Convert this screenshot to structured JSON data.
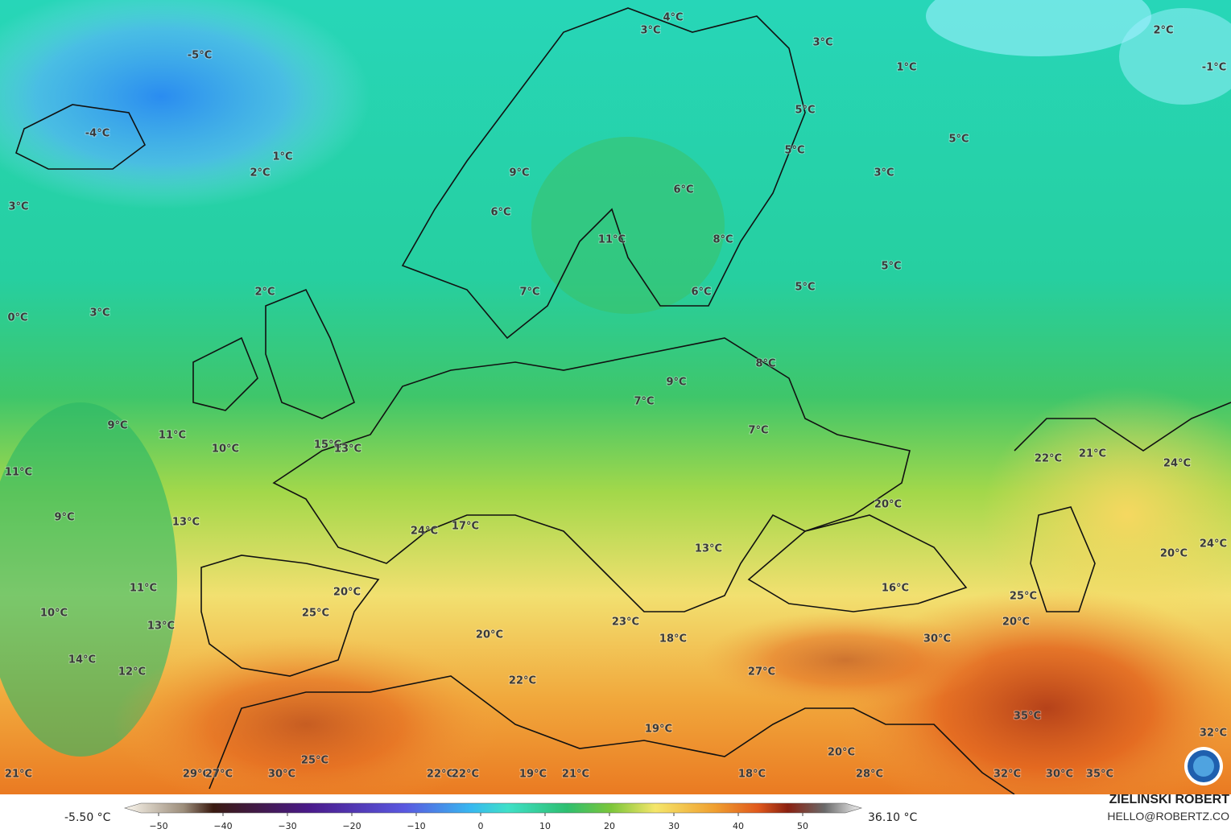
{
  "map": {
    "labels": [
      "4°C",
      "3°C",
      "3°C",
      "2°C",
      "-5°C",
      "1°C",
      "-1°C",
      "5°C",
      "-4°C",
      "5°C",
      "1°C",
      "5°C",
      "9°C",
      "2°C",
      "3°C",
      "6°C",
      "3°C",
      "6°C",
      "11°C",
      "8°C",
      "5°C",
      "2°C",
      "7°C",
      "6°C",
      "5°C",
      "3°C",
      "0°C",
      "8°C",
      "9°C",
      "7°C",
      "9°C",
      "11°C",
      "7°C",
      "15°C",
      "13°C",
      "10°C",
      "22°C",
      "21°C",
      "24°C",
      "11°C",
      "20°C",
      "9°C",
      "13°C",
      "24°C",
      "17°C",
      "13°C",
      "20°C",
      "24°C",
      "11°C",
      "16°C",
      "20°C",
      "25°C",
      "10°C",
      "25°C",
      "23°C",
      "20°C",
      "13°C",
      "30°C",
      "20°C",
      "18°C",
      "14°C",
      "12°C",
      "27°C",
      "22°C",
      "35°C",
      "19°C",
      "32°C",
      "20°C",
      "25°C",
      "21°C",
      "29°C",
      "27°C",
      "30°C",
      "22°C",
      "22°C",
      "19°C",
      "21°C",
      "18°C",
      "28°C",
      "32°C",
      "30°C",
      "35°C"
    ]
  },
  "colorbar": {
    "min_label": "-5.50 °C",
    "max_label": "36.10 °C",
    "lim": [
      -50,
      50
    ],
    "ticks": [
      {
        "value": -50,
        "label": "−50"
      },
      {
        "value": -40,
        "label": "−40"
      },
      {
        "value": -30,
        "label": "−30"
      },
      {
        "value": -20,
        "label": "−20"
      },
      {
        "value": -10,
        "label": "−10"
      },
      0,
      10,
      20,
      30,
      40,
      50
    ]
  },
  "credit": {
    "name": "ZIELINSKI ROBERT",
    "email": "HELLO@ROBERTZ.CO"
  }
}
